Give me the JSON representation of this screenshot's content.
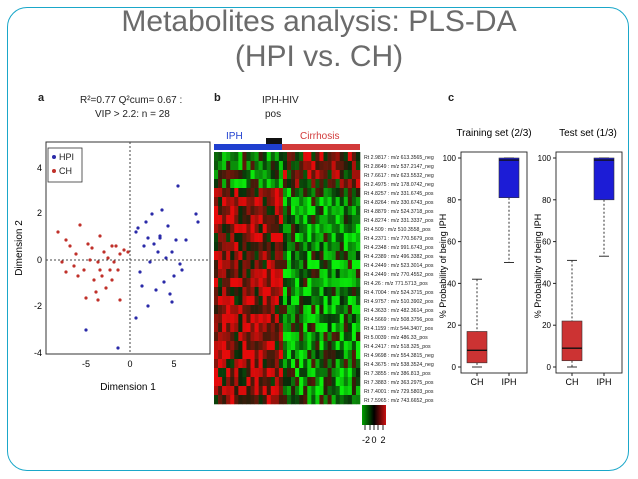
{
  "slide": {
    "title_line1": "Metabolites analysis: PLS-DA",
    "title_line2": "(HPI vs. CH)"
  },
  "panel_a": {
    "letter": "a",
    "stats_line1": "R²=0.77 Q²cum= 0.67 :",
    "stats_line2": "VIP > 2.2: n = 28",
    "legend": [
      "HPI",
      "CH"
    ],
    "xlabel": "Dimension 1",
    "ylabel": "Dimension 2",
    "xticks": [
      "-5",
      "0",
      "5"
    ],
    "yticks": [
      "4",
      "2",
      "0",
      "-2",
      "-4"
    ],
    "colors": {
      "HPI": "#2a2aa8",
      "CH": "#c0302a"
    }
  },
  "panel_b": {
    "letter": "b",
    "group_labels": [
      "IPH",
      "IPH-HIV",
      "pos",
      "Cirrhosis"
    ],
    "features": [
      "Rt 2.9817 : m/z 613.3565_neg",
      "Rt 2.8649 : m/z 537.2147_neg",
      "Rt 7.6617 : m/z 623.5532_neg",
      "Rt 2.4975 : m/z 178.0742_neg",
      "Rt 4.8257 : m/z 331.6745_pos",
      "Rt 4.8264 : m/z 330.6743_pos",
      "Rt 4.8879 : m/z 524.3718_pos",
      "Rt 4.8274 : m/z 331.3337_pos",
      "Rt 4.509 : m/z 510.3558_pos",
      "Rt 4.2371 : m/z 770.5679_pos",
      "Rt 4.2348 : m/z 991.6743_pos",
      "Rt 4.2389 : m/z 496.3382_pos",
      "Rt 4.2449 : m/z 523.3014_pos",
      "Rt 4.2449 : m/z 770.4552_pos",
      "Rt 4.26 : m/z 771.5713_pos",
      "Rt 4.7004 : m/z 524.3715_pos",
      "Rt 4.9757 : m/z 510.3902_pos",
      "Rt 4.3633 : m/z 482.3614_pos",
      "Rt 4.5669 : m/z 508.3756_pos",
      "Rt 4.1159 : m/z 544.3407_pos",
      "Rt 5.0039 : m/z 486.33_pos",
      "Rt 4.2417 : m/z 518.325_pos",
      "Rt 4.9698 : m/z 554.3815_neg",
      "Rt 4.3675 : m/z 538.3524_neg",
      "Rt 7.3855 : m/z 386.813_pos",
      "Rt 7.3883 : m/z 363.2975_pos",
      "Rt 7.4001 : m/z 729.5803_pos",
      "Rt 7.5965 : m/z 743.6652_pos"
    ],
    "colorbar_ticks": [
      "-2",
      "0",
      "2"
    ],
    "colors": {
      "IPH": "#1f3fcf",
      "IPH-HIV": "#111111",
      "Cirrhosis": "#d23a3a"
    }
  },
  "panel_c": {
    "letter": "c",
    "ylabel": "% Probability of being IPH",
    "yticks": [
      "100",
      "80",
      "60",
      "40",
      "20",
      "0"
    ],
    "plots": [
      {
        "title": "Training set (2/3)",
        "categories": [
          "CH",
          "IPH"
        ],
        "boxes": [
          {
            "category": "CH",
            "min": 0,
            "q1": 2,
            "median": 8,
            "q3": 17,
            "max": 42,
            "color": "#cc3333"
          },
          {
            "category": "IPH",
            "min": 50,
            "q1": 81,
            "median": 99,
            "q3": 100,
            "max": 100,
            "color": "#1c1cd6"
          }
        ]
      },
      {
        "title": "Test set (1/3)",
        "categories": [
          "CH",
          "IPH"
        ],
        "boxes": [
          {
            "category": "CH",
            "min": 0,
            "q1": 3,
            "median": 9,
            "q3": 22,
            "max": 51,
            "color": "#cc3333"
          },
          {
            "category": "IPH",
            "min": 53,
            "q1": 80,
            "median": 99,
            "q3": 100,
            "max": 100,
            "color": "#1c1cd6"
          }
        ]
      }
    ]
  }
}
